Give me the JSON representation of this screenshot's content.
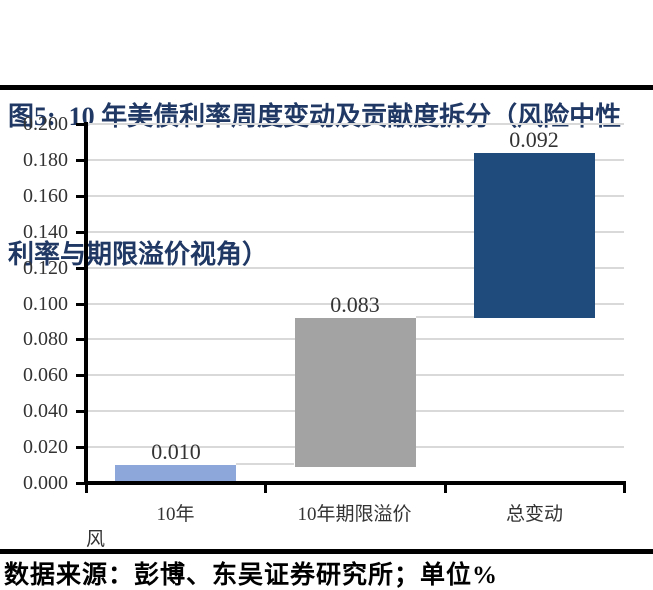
{
  "figure": {
    "title_line1": "图5:  10 年美债利率周度变动及贡献度拆分（风险中性",
    "title_line2": "利率与期限溢价视角）",
    "source_note": "数据来源：彭博、东吴证券研究所；单位%"
  },
  "chart_data": {
    "type": "bar",
    "subtype": "waterfall",
    "title": "10 年美债利率周度变动及贡献度拆分（风险中性利率与期限溢价视角）",
    "unit": "%",
    "categories": [
      "10年",
      "10年期限溢价",
      "总变动"
    ],
    "clipped_first_category_second_line": "风",
    "values": [
      0.01,
      0.083,
      0.092
    ],
    "value_labels": [
      "0.010",
      "0.083",
      "0.092"
    ],
    "bar_ranges": [
      [
        0.0,
        0.01
      ],
      [
        0.009,
        0.092
      ],
      [
        0.092,
        0.184
      ]
    ],
    "bar_colors": [
      "#8EA7DA",
      "#A3A3A3",
      "#1F4B7C"
    ],
    "bar_names": [
      "bar-10y-risk-neutral-rate",
      "bar-10y-term-premium",
      "bar-total-change"
    ],
    "ylim": [
      0,
      0.2
    ],
    "ytick_step": 0.02,
    "ytick_labels": [
      "0.000",
      "0.020",
      "0.040",
      "0.060",
      "0.080",
      "0.100",
      "0.120",
      "0.140",
      "0.160",
      "0.180",
      "0.200"
    ],
    "grid": true,
    "legend": "none",
    "gridline_color": "#D9D9D9",
    "connector_color": "#D9D9D9",
    "axis_color": "#000000",
    "label_color": "#333333"
  },
  "colors": {
    "title": "#1F3864",
    "rule": "#000000",
    "background": "#FFFFFF"
  }
}
